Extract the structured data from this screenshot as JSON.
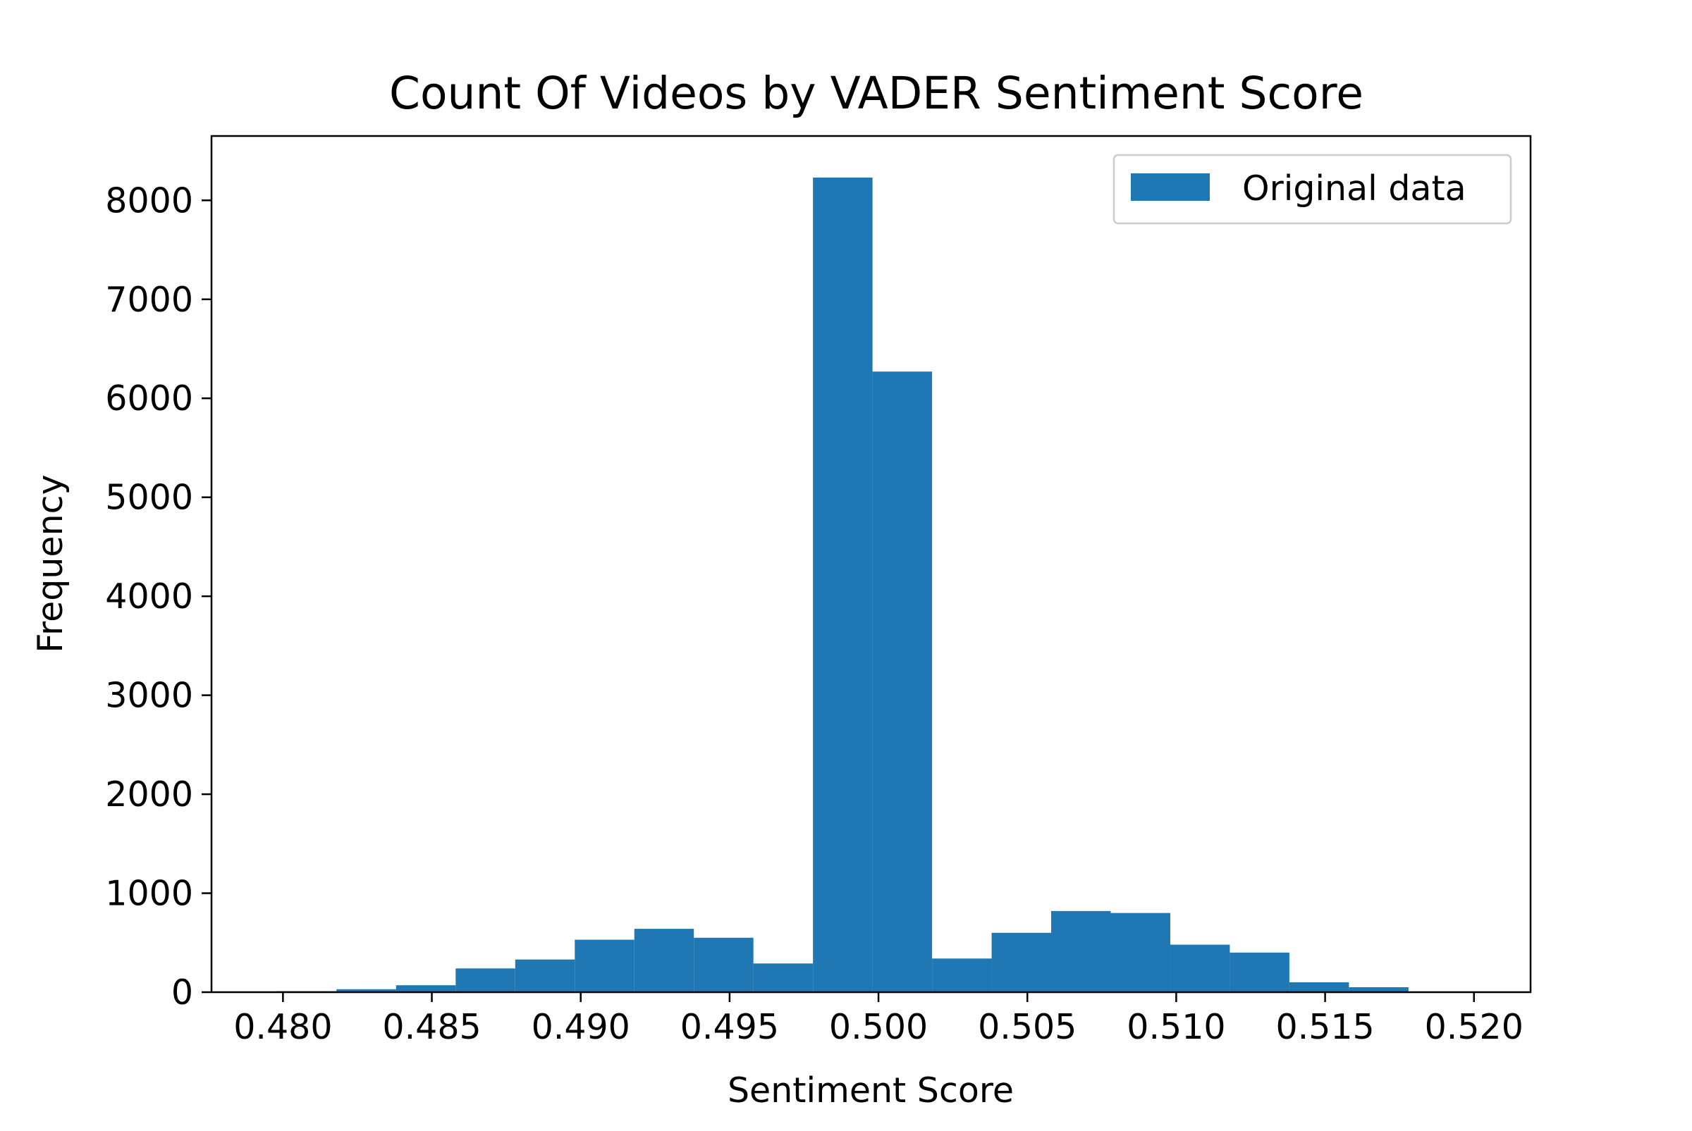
{
  "chart_data": {
    "type": "bar",
    "title": "Count Of Videos by VADER Sentiment Score",
    "xlabel": "Sentiment Score",
    "ylabel": "Frequency",
    "xlim": [
      0.4776,
      0.5219
    ],
    "ylim": [
      0,
      8650
    ],
    "x_ticks": [
      0.48,
      0.485,
      0.49,
      0.495,
      0.5,
      0.505,
      0.51,
      0.515,
      0.52
    ],
    "x_tick_labels": [
      "0.480",
      "0.485",
      "0.490",
      "0.495",
      "0.500",
      "0.505",
      "0.510",
      "0.515",
      "0.520"
    ],
    "y_ticks": [
      0,
      1000,
      2000,
      3000,
      4000,
      5000,
      6000,
      7000,
      8000
    ],
    "y_tick_labels": [
      "0",
      "1000",
      "2000",
      "3000",
      "4000",
      "5000",
      "6000",
      "7000",
      "8000"
    ],
    "legend": {
      "position": "top-right",
      "label": "Original data"
    },
    "series": [
      {
        "name": "Original data",
        "color": "#1f77b4",
        "bins": [
          {
            "x0": 0.4798,
            "x1": 0.4818,
            "value": 10
          },
          {
            "x0": 0.4818,
            "x1": 0.4838,
            "value": 30
          },
          {
            "x0": 0.4838,
            "x1": 0.4858,
            "value": 70
          },
          {
            "x0": 0.4858,
            "x1": 0.4878,
            "value": 240
          },
          {
            "x0": 0.4878,
            "x1": 0.4898,
            "value": 330
          },
          {
            "x0": 0.4898,
            "x1": 0.4918,
            "value": 530
          },
          {
            "x0": 0.4918,
            "x1": 0.4938,
            "value": 640
          },
          {
            "x0": 0.4938,
            "x1": 0.4958,
            "value": 550
          },
          {
            "x0": 0.4958,
            "x1": 0.4978,
            "value": 290
          },
          {
            "x0": 0.4978,
            "x1": 0.4998,
            "value": 8230
          },
          {
            "x0": 0.4998,
            "x1": 0.5018,
            "value": 6270
          },
          {
            "x0": 0.5018,
            "x1": 0.5038,
            "value": 340
          },
          {
            "x0": 0.5038,
            "x1": 0.5058,
            "value": 600
          },
          {
            "x0": 0.5058,
            "x1": 0.5078,
            "value": 820
          },
          {
            "x0": 0.5078,
            "x1": 0.5098,
            "value": 800
          },
          {
            "x0": 0.5098,
            "x1": 0.5118,
            "value": 480
          },
          {
            "x0": 0.5118,
            "x1": 0.5138,
            "value": 400
          },
          {
            "x0": 0.5138,
            "x1": 0.5158,
            "value": 100
          },
          {
            "x0": 0.5158,
            "x1": 0.5178,
            "value": 50
          },
          {
            "x0": 0.5178,
            "x1": 0.5198,
            "value": 5
          }
        ]
      }
    ]
  }
}
